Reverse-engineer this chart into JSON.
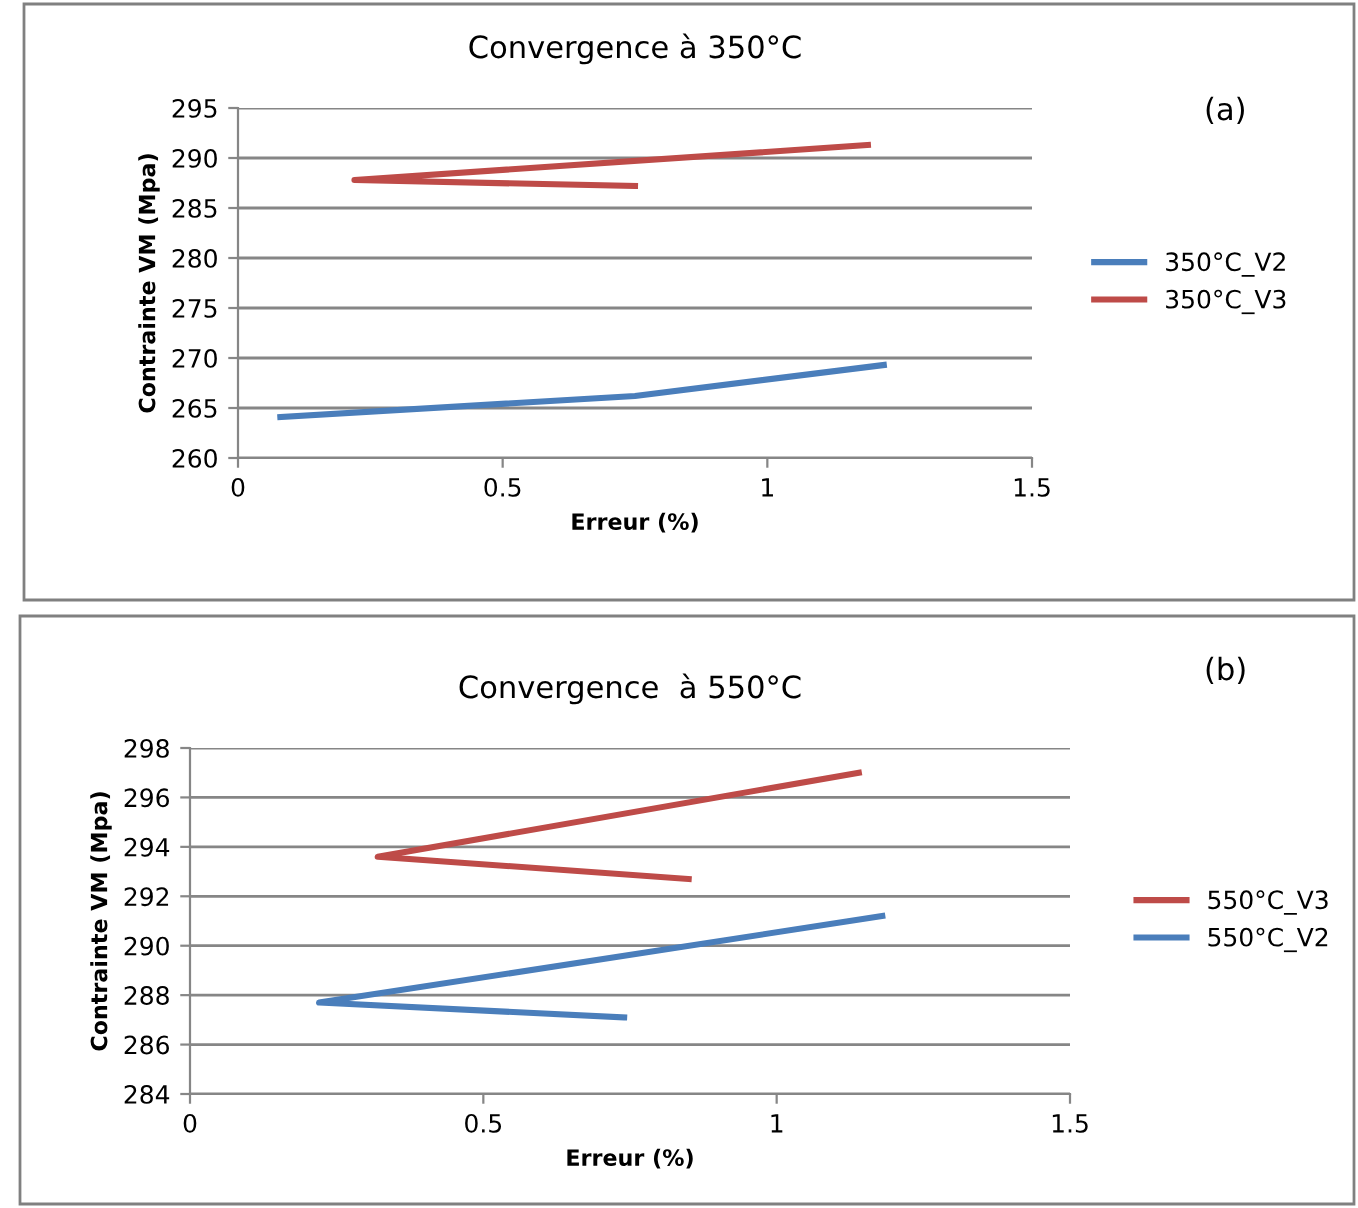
{
  "chart_data": [
    {
      "type": "line",
      "title": "Convergence à 350°C",
      "xlabel": "Erreur (%)",
      "ylabel": "Contrainte VM (Mpa)",
      "annotations": [
        "(a)"
      ],
      "xlim": [
        0,
        1.5
      ],
      "xticks": [
        0,
        0.5,
        1,
        1.5
      ],
      "ylim": [
        260,
        295
      ],
      "yticks": [
        260,
        265,
        270,
        275,
        280,
        285,
        290,
        295
      ],
      "grid": "y",
      "legend": "right",
      "series": [
        {
          "name": "350°C_V2",
          "color": "#4a7ebb",
          "x": [
            0.08,
            0.75,
            1.22
          ],
          "values": [
            264.1,
            266.2,
            269.3
          ]
        },
        {
          "name": "350°C_V3",
          "color": "#be4b48",
          "x": [
            0.75,
            0.22,
            1.19
          ],
          "values": [
            287.2,
            287.8,
            291.3
          ]
        }
      ]
    },
    {
      "type": "line",
      "title": "Convergence  à 550°C",
      "xlabel": "Erreur (%)",
      "ylabel": "Contrainte VM (Mpa)",
      "annotations": [
        "(b)"
      ],
      "xlim": [
        0,
        1.5
      ],
      "xticks": [
        0,
        0.5,
        1,
        1.5
      ],
      "ylim": [
        284,
        298
      ],
      "yticks": [
        284,
        286,
        288,
        290,
        292,
        294,
        296,
        298
      ],
      "grid": "y",
      "legend": "right",
      "series": [
        {
          "name": "550°C_V3",
          "color": "#be4b48",
          "x": [
            0.85,
            0.32,
            1.14
          ],
          "values": [
            292.7,
            293.6,
            297.0
          ]
        },
        {
          "name": "550°C_V2",
          "color": "#4a7ebb",
          "x": [
            0.74,
            0.22,
            1.18
          ],
          "values": [
            287.1,
            287.7,
            291.2
          ]
        }
      ]
    }
  ]
}
